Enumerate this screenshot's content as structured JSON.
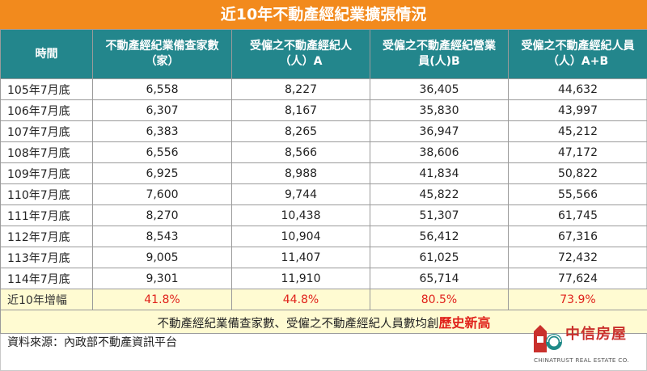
{
  "title": "近10年不動產經紀業擴張情況",
  "table": {
    "headers": [
      [
        "時間"
      ],
      [
        "不動產經紀業備查家數",
        "（家）"
      ],
      [
        "受僱之不動產經紀人",
        "（人）A"
      ],
      [
        "受僱之不動產經紀營業",
        "員(人)B"
      ],
      [
        "受僱之不動產經紀人員",
        "（人）A+B"
      ]
    ],
    "rows": [
      [
        "105年7月底",
        "6,558",
        "8,227",
        "36,405",
        "44,632"
      ],
      [
        "106年7月底",
        "6,307",
        "8,167",
        "35,830",
        "43,997"
      ],
      [
        "107年7月底",
        "6,383",
        "8,265",
        "36,947",
        "45,212"
      ],
      [
        "108年7月底",
        "6,556",
        "8,566",
        "38,606",
        "47,172"
      ],
      [
        "109年7月底",
        "6,925",
        "8,988",
        "41,834",
        "50,822"
      ],
      [
        "110年7月底",
        "7,600",
        "9,744",
        "45,822",
        "55,566"
      ],
      [
        "111年7月底",
        "8,270",
        "10,438",
        "51,307",
        "61,745"
      ],
      [
        "112年7月底",
        "8,543",
        "10,904",
        "56,412",
        "67,316"
      ],
      [
        "113年7月底",
        "9,005",
        "11,407",
        "61,025",
        "72,432"
      ],
      [
        "114年7月底",
        "9,301",
        "11,910",
        "65,714",
        "77,624"
      ]
    ],
    "growth_row": [
      "近10年增幅",
      "41.8%",
      "44.8%",
      "80.5%",
      "73.9%"
    ]
  },
  "summary": {
    "text": "不動產經紀業備查家數、受僱之不動產經紀人員數均創",
    "highlight": "歷史新高"
  },
  "source": "資料來源：內政部不動產資訊平台",
  "logo": {
    "name": "中信房屋",
    "english": "CHINATRUST REAL ESTATE CO."
  },
  "colors": {
    "title_bg": "#f28a1d",
    "header_bg": "#23868c",
    "highlight_bg": "#fffbd2",
    "accent_red": "#e0221b"
  }
}
